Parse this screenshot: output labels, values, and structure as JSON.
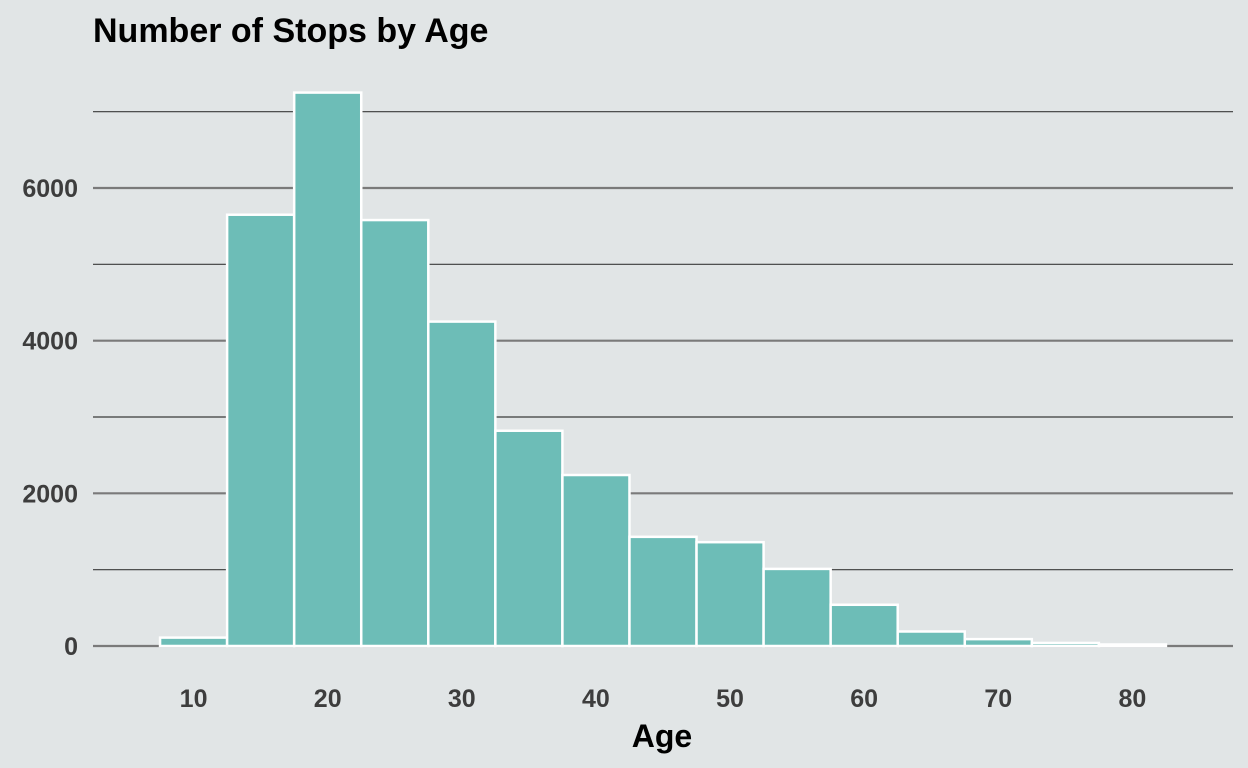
{
  "chart_data": {
    "type": "bar",
    "title": "Number of Stops by Age",
    "xlabel": "Age",
    "ylabel": "",
    "bin_width": 5,
    "bin_centers": [
      10,
      15,
      20,
      25,
      30,
      35,
      40,
      45,
      50,
      55,
      60,
      65,
      70,
      75,
      80
    ],
    "values": [
      110,
      5650,
      7250,
      5580,
      4250,
      2820,
      2240,
      1430,
      1360,
      1010,
      540,
      190,
      90,
      40,
      20
    ],
    "xlim": [
      2.5,
      87.5
    ],
    "ylim": [
      -100,
      7500
    ],
    "x_ticks": [
      10,
      20,
      30,
      40,
      50,
      60,
      70,
      80
    ],
    "y_ticks": [
      0,
      2000,
      4000,
      6000
    ],
    "y_minor_ticks": [
      1000,
      3000,
      5000,
      7000
    ],
    "grid": true,
    "bar_color": "#6dbdb7",
    "bar_edge_color": "#ffffff",
    "background_color": "#e1e5e6"
  }
}
